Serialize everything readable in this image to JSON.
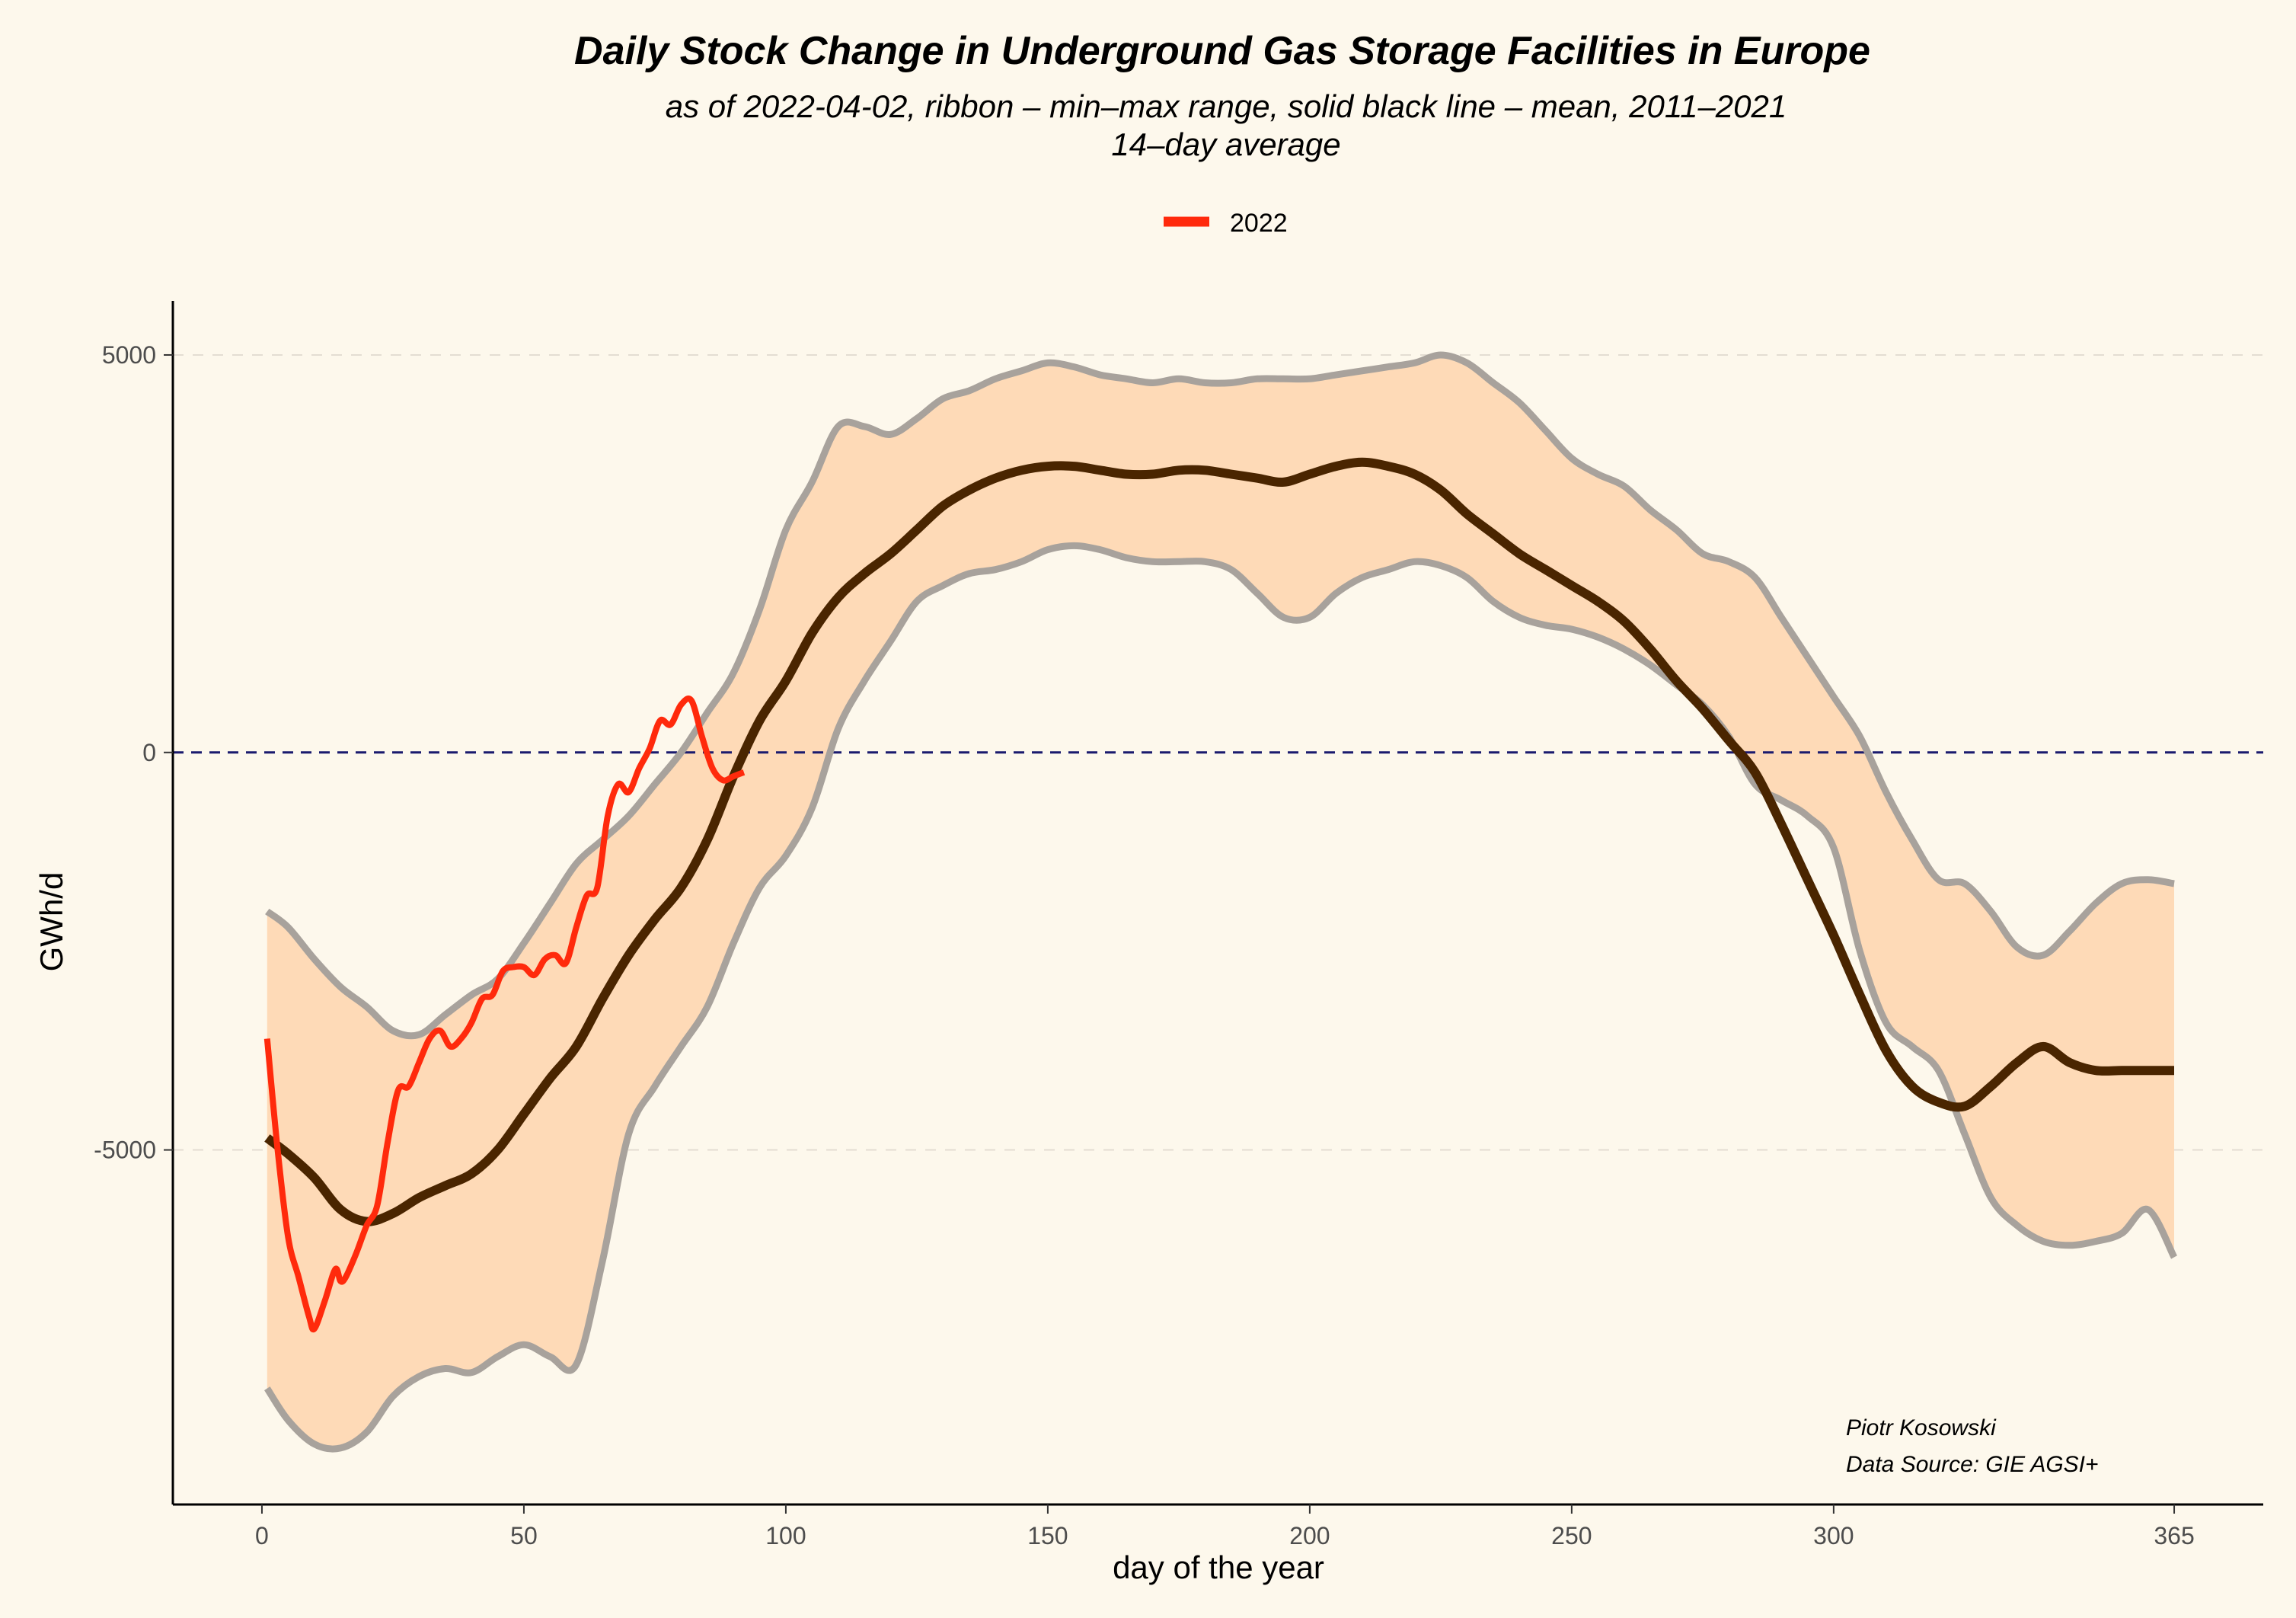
{
  "chart_data": {
    "type": "line",
    "title": "Daily Stock Change in Underground Gas Storage Facilities in Europe",
    "subtitle_line1": "as of 2022-04-02, ribbon – min–max range, solid black line – mean, 2011–2021",
    "subtitle_line2": "14–day average",
    "xlabel": "day of the year",
    "ylabel": "GWh/d",
    "xlim": [
      -17,
      382
    ],
    "ylim": [
      -9460,
      5680
    ],
    "x_ticks": [
      0,
      50,
      100,
      150,
      200,
      250,
      300,
      365
    ],
    "x_tick_labels": [
      "0",
      "50",
      "100",
      "150",
      "200",
      "250",
      "300",
      "365"
    ],
    "y_ticks": [
      5000,
      0,
      -5000
    ],
    "y_tick_labels": [
      "5000",
      "0",
      "-5000"
    ],
    "grid": "dashed horizontal at major y ticks",
    "reference_line": {
      "y": 0,
      "style": "dashed",
      "color": "#1a1a6e"
    },
    "legend": {
      "position": "top",
      "entries": [
        {
          "label": "2022",
          "color": "#ff2a0c"
        }
      ]
    },
    "caption_line1": "Piotr Kosowski",
    "caption_line2": "Data Source: GIE AGSI+",
    "colors": {
      "background": "#fdf8ec",
      "ribbon_fill": "#fedab7",
      "ribbon_edge": "#a8a29c",
      "mean": "#4a2500",
      "year_2022": "#ff2a0c",
      "zero_line": "#1a1a6e"
    },
    "series": [
      {
        "name": "min",
        "x": [
          1,
          5,
          10,
          15,
          20,
          25,
          30,
          35,
          40,
          45,
          50,
          55,
          60,
          65,
          70,
          75,
          80,
          85,
          90,
          95,
          100,
          105,
          110,
          115,
          120,
          125,
          130,
          135,
          140,
          145,
          150,
          155,
          160,
          165,
          170,
          175,
          180,
          185,
          190,
          195,
          200,
          205,
          210,
          215,
          220,
          225,
          230,
          235,
          240,
          245,
          250,
          255,
          260,
          265,
          270,
          275,
          280,
          285,
          290,
          295,
          300,
          305,
          310,
          315,
          320,
          325,
          330,
          335,
          340,
          345,
          350,
          355,
          360,
          365
        ],
        "values": [
          -8000,
          -8400,
          -8700,
          -8750,
          -8550,
          -8100,
          -7850,
          -7750,
          -7800,
          -7600,
          -7450,
          -7600,
          -7700,
          -6400,
          -4800,
          -4200,
          -3700,
          -3200,
          -2400,
          -1700,
          -1300,
          -700,
          300,
          900,
          1400,
          1900,
          2100,
          2250,
          2300,
          2400,
          2550,
          2600,
          2550,
          2450,
          2400,
          2400,
          2400,
          2300,
          2000,
          1700,
          1700,
          2000,
          2200,
          2300,
          2400,
          2350,
          2200,
          1900,
          1700,
          1600,
          1550,
          1450,
          1300,
          1100,
          850,
          600,
          200,
          -400,
          -600,
          -800,
          -1200,
          -2500,
          -3400,
          -3700,
          -4000,
          -4800,
          -5600,
          -5950,
          -6150,
          -6200,
          -6150,
          -6050,
          -5750,
          -6350
        ]
      },
      {
        "name": "max",
        "x": [
          1,
          5,
          10,
          15,
          20,
          25,
          30,
          35,
          40,
          45,
          50,
          55,
          60,
          65,
          70,
          75,
          80,
          85,
          90,
          95,
          100,
          105,
          110,
          115,
          120,
          125,
          130,
          135,
          140,
          145,
          150,
          155,
          160,
          165,
          170,
          175,
          180,
          185,
          190,
          195,
          200,
          205,
          210,
          215,
          220,
          225,
          230,
          235,
          240,
          245,
          250,
          255,
          260,
          265,
          270,
          275,
          280,
          285,
          290,
          295,
          300,
          305,
          310,
          315,
          320,
          325,
          330,
          335,
          340,
          345,
          350,
          355,
          360,
          365
        ],
        "values": [
          -2000,
          -2200,
          -2600,
          -2950,
          -3200,
          -3500,
          -3550,
          -3300,
          -3050,
          -2850,
          -2400,
          -1900,
          -1400,
          -1100,
          -800,
          -400,
          0,
          500,
          1000,
          1800,
          2800,
          3400,
          4100,
          4100,
          4000,
          4200,
          4450,
          4550,
          4700,
          4800,
          4900,
          4850,
          4750,
          4700,
          4650,
          4700,
          4650,
          4650,
          4700,
          4700,
          4700,
          4750,
          4800,
          4850,
          4900,
          5000,
          4900,
          4650,
          4400,
          4050,
          3700,
          3500,
          3350,
          3050,
          2800,
          2500,
          2400,
          2200,
          1700,
          1200,
          700,
          200,
          -500,
          -1100,
          -1600,
          -1650,
          -2000,
          -2450,
          -2550,
          -2250,
          -1900,
          -1650,
          -1600,
          -1650
        ]
      },
      {
        "name": "mean",
        "x": [
          1,
          5,
          10,
          15,
          20,
          25,
          30,
          35,
          40,
          45,
          50,
          55,
          60,
          65,
          70,
          75,
          80,
          85,
          90,
          95,
          100,
          105,
          110,
          115,
          120,
          125,
          130,
          135,
          140,
          145,
          150,
          155,
          160,
          165,
          170,
          175,
          180,
          185,
          190,
          195,
          200,
          205,
          210,
          215,
          220,
          225,
          230,
          235,
          240,
          245,
          250,
          255,
          260,
          265,
          270,
          275,
          280,
          285,
          290,
          295,
          300,
          305,
          310,
          315,
          320,
          325,
          330,
          335,
          340,
          345,
          350,
          355,
          360,
          365
        ],
        "values": [
          -4850,
          -5050,
          -5350,
          -5750,
          -5900,
          -5800,
          -5600,
          -5450,
          -5300,
          -5000,
          -4550,
          -4100,
          -3700,
          -3100,
          -2550,
          -2100,
          -1700,
          -1100,
          -300,
          400,
          900,
          1500,
          1950,
          2250,
          2500,
          2800,
          3100,
          3300,
          3450,
          3550,
          3600,
          3600,
          3550,
          3500,
          3500,
          3550,
          3550,
          3500,
          3450,
          3400,
          3500,
          3600,
          3650,
          3600,
          3500,
          3300,
          3000,
          2750,
          2500,
          2300,
          2100,
          1900,
          1650,
          1300,
          900,
          550,
          150,
          -250,
          -900,
          -1600,
          -2300,
          -3050,
          -3750,
          -4200,
          -4400,
          -4450,
          -4200,
          -3900,
          -3700,
          -3900,
          -4000,
          -4000,
          -4000,
          -4000
        ]
      },
      {
        "name": "2022",
        "x": [
          1,
          3,
          5,
          7,
          9,
          10,
          12,
          14,
          15,
          16,
          18,
          20,
          22,
          24,
          26,
          28,
          30,
          32,
          34,
          36,
          38,
          40,
          42,
          44,
          46,
          48,
          50,
          52,
          54,
          56,
          58,
          60,
          62,
          64,
          66,
          68,
          70,
          72,
          74,
          76,
          78,
          80,
          82,
          84,
          86,
          88,
          90,
          92
        ],
        "values": [
          -3600,
          -5000,
          -6100,
          -6600,
          -7100,
          -7250,
          -6900,
          -6500,
          -6650,
          -6600,
          -6300,
          -5950,
          -5700,
          -4900,
          -4250,
          -4200,
          -3900,
          -3600,
          -3500,
          -3700,
          -3600,
          -3400,
          -3100,
          -3050,
          -2750,
          -2700,
          -2700,
          -2800,
          -2600,
          -2550,
          -2650,
          -2200,
          -1800,
          -1700,
          -800,
          -400,
          -500,
          -200,
          50,
          400,
          350,
          600,
          650,
          200,
          -200,
          -350,
          -300,
          -250
        ]
      }
    ]
  }
}
